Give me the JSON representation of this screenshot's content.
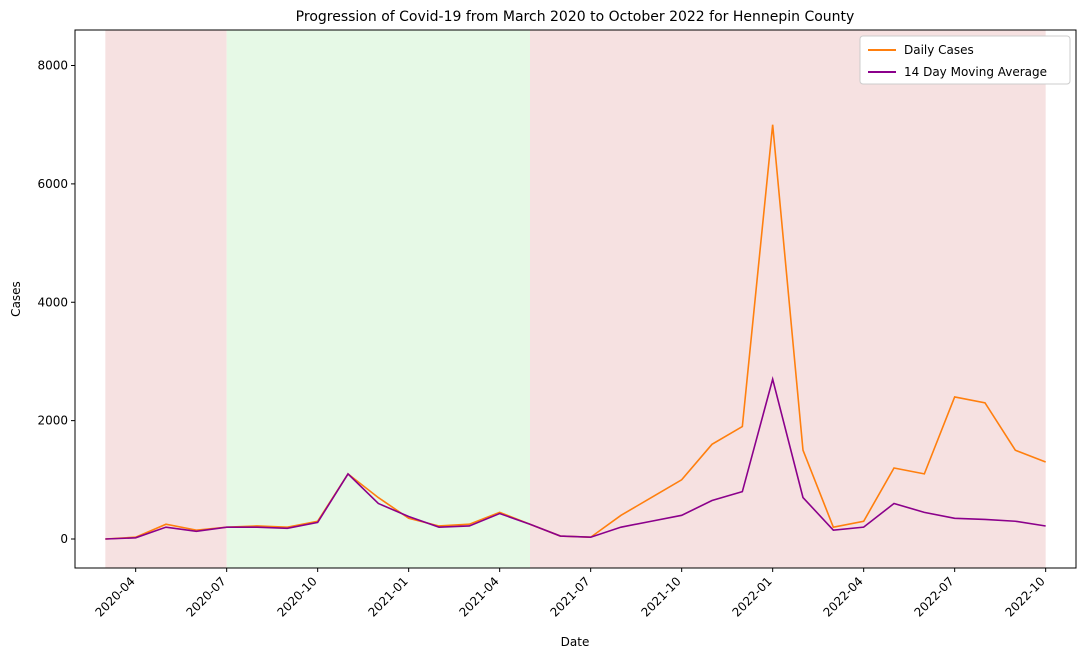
{
  "chart_data": {
    "type": "line",
    "title": "Progression of Covid-19 from March 2020 to October 2022 for Hennepin County",
    "x_label": "Date",
    "y_label": "Cases",
    "x": [
      "2020-03",
      "2020-04",
      "2020-05",
      "2020-06",
      "2020-07",
      "2020-08",
      "2020-09",
      "2020-10",
      "2020-11",
      "2020-12",
      "2021-01",
      "2021-02",
      "2021-03",
      "2021-04",
      "2021-05",
      "2021-06",
      "2021-07",
      "2021-08",
      "2021-09",
      "2021-10",
      "2021-11",
      "2021-12",
      "2022-01",
      "2022-02",
      "2022-03",
      "2022-04",
      "2022-05",
      "2022-06",
      "2022-07",
      "2022-08",
      "2022-09",
      "2022-10"
    ],
    "series": [
      {
        "name": "Daily Cases",
        "color": "#ff7f0e",
        "values": [
          0,
          30,
          250,
          150,
          200,
          220,
          200,
          300,
          1100,
          700,
          350,
          220,
          250,
          450,
          250,
          50,
          30,
          400,
          700,
          1000,
          1600,
          1900,
          7000,
          1500,
          200,
          300,
          1200,
          1100,
          2400,
          2300,
          1500,
          1300
        ]
      },
      {
        "name": "14 Day Moving Average",
        "color": "#8b008b",
        "values": [
          0,
          20,
          200,
          130,
          200,
          200,
          180,
          280,
          1100,
          600,
          380,
          200,
          220,
          430,
          250,
          50,
          30,
          200,
          300,
          400,
          650,
          800,
          2700,
          700,
          150,
          200,
          600,
          450,
          350,
          330,
          300,
          220
        ]
      }
    ],
    "shaded_spans": [
      {
        "start": "2020-03",
        "end": "2020-07",
        "color": "#f5dcdc"
      },
      {
        "start": "2020-07",
        "end": "2021-05",
        "color": "#e2f8e2"
      },
      {
        "start": "2021-05",
        "end": "2022-10",
        "color": "#f5dcdc"
      }
    ],
    "xlim": [
      "2020-02",
      "2022-11"
    ],
    "xticks": [
      "2020-04",
      "2020-07",
      "2020-10",
      "2021-01",
      "2021-04",
      "2021-07",
      "2021-10",
      "2022-01",
      "2022-04",
      "2022-07",
      "2022-10"
    ],
    "ylim": [
      -490,
      8600
    ],
    "yticks": [
      0,
      2000,
      4000,
      6000,
      8000
    ],
    "legend": "upper right"
  }
}
